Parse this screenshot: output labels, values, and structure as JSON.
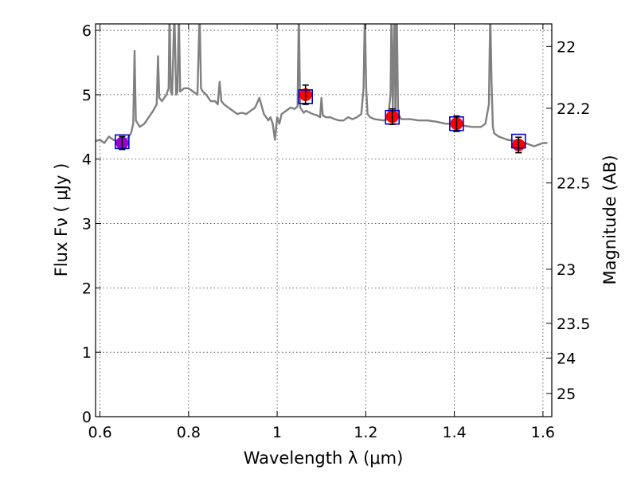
{
  "chart_data": {
    "type": "scatter",
    "xlabel": "Wavelength  λ (μm)",
    "ylabel": "Flux  Fν  ( μJy )",
    "ylabel_right": "Magnitude (AB)",
    "xlim": [
      0.59,
      1.62
    ],
    "ylim": [
      0,
      6.1
    ],
    "grid": true,
    "x_ticks": [
      0.6,
      0.8,
      1.0,
      1.2,
      1.4,
      1.6
    ],
    "x_tick_labels": [
      "0.6",
      "0.8",
      "1",
      "1.2",
      "1.4",
      "1.6"
    ],
    "y_ticks": [
      0,
      1,
      2,
      3,
      4,
      5,
      6
    ],
    "y_tick_labels": [
      "0",
      "1",
      "2",
      "3",
      "4",
      "5",
      "6"
    ],
    "right_ticks": [
      {
        "flux": 5.75,
        "label": "22"
      },
      {
        "flux": 4.79,
        "label": "22.2"
      },
      {
        "flux": 3.63,
        "label": "22.5"
      },
      {
        "flux": 2.29,
        "label": "23"
      },
      {
        "flux": 1.45,
        "label": "23.5"
      },
      {
        "flux": 0.91,
        "label": "24"
      },
      {
        "flux": 0.36,
        "label": "25"
      }
    ],
    "colors": {
      "model": "#808080",
      "observed": "#ff0000",
      "synthetic_box": "#0000cc",
      "errorbar": "#000000",
      "first_point": "#9900cc"
    },
    "model_spectrum": {
      "x": [
        0.59,
        0.6,
        0.61,
        0.62,
        0.63,
        0.64,
        0.65,
        0.66,
        0.67,
        0.675,
        0.678,
        0.681,
        0.69,
        0.7,
        0.71,
        0.72,
        0.728,
        0.731,
        0.734,
        0.74,
        0.75,
        0.755,
        0.757,
        0.76,
        0.763,
        0.768,
        0.772,
        0.775,
        0.778,
        0.781,
        0.79,
        0.8,
        0.81,
        0.82,
        0.825,
        0.828,
        0.832,
        0.84,
        0.85,
        0.86,
        0.866,
        0.87,
        0.874,
        0.88,
        0.89,
        0.9,
        0.91,
        0.92,
        0.93,
        0.94,
        0.95,
        0.96,
        0.97,
        0.98,
        0.985,
        0.99,
        0.995,
        1.0,
        1.005,
        1.01,
        1.02,
        1.03,
        1.04,
        1.046,
        1.049,
        1.052,
        1.06,
        1.065,
        1.08,
        1.09,
        1.097,
        1.1,
        1.103,
        1.11,
        1.12,
        1.13,
        1.14,
        1.15,
        1.16,
        1.17,
        1.18,
        1.19,
        1.195,
        1.198,
        1.201,
        1.204,
        1.21,
        1.22,
        1.24,
        1.25,
        1.256,
        1.258,
        1.261,
        1.265,
        1.267,
        1.27,
        1.273,
        1.28,
        1.3,
        1.32,
        1.34,
        1.36,
        1.38,
        1.4,
        1.42,
        1.44,
        1.46,
        1.47,
        1.478,
        1.481,
        1.484,
        1.487,
        1.49,
        1.5,
        1.52,
        1.54,
        1.56,
        1.58,
        1.6,
        1.61
      ],
      "y": [
        4.28,
        4.3,
        4.25,
        4.35,
        4.3,
        4.28,
        4.26,
        4.3,
        4.4,
        4.55,
        5.68,
        4.6,
        4.5,
        4.55,
        4.65,
        4.75,
        4.85,
        5.6,
        4.95,
        4.9,
        5.0,
        5.1,
        6.3,
        5.05,
        5.0,
        6.3,
        5.0,
        5.05,
        6.3,
        5.05,
        5.1,
        5.1,
        5.05,
        5.0,
        6.3,
        5.1,
        5.05,
        5.0,
        4.9,
        4.9,
        4.85,
        5.2,
        4.9,
        4.85,
        4.8,
        4.75,
        4.7,
        4.72,
        4.7,
        4.75,
        4.8,
        4.95,
        4.7,
        4.6,
        4.65,
        4.55,
        4.3,
        4.65,
        4.55,
        4.7,
        4.75,
        4.8,
        4.78,
        4.82,
        6.3,
        4.8,
        4.72,
        4.75,
        4.7,
        4.68,
        4.65,
        4.95,
        4.68,
        4.65,
        4.65,
        4.62,
        4.6,
        4.6,
        4.65,
        4.62,
        4.65,
        4.7,
        5.1,
        6.3,
        5.1,
        4.7,
        4.65,
        4.62,
        4.6,
        4.62,
        5.0,
        6.3,
        4.8,
        6.3,
        4.65,
        6.3,
        4.7,
        4.62,
        4.62,
        4.6,
        4.6,
        4.58,
        4.55,
        4.55,
        4.52,
        4.5,
        4.5,
        4.55,
        4.85,
        6.3,
        5.2,
        4.5,
        4.4,
        4.35,
        4.3,
        4.28,
        4.25,
        4.2,
        4.25,
        4.25
      ]
    },
    "observed": [
      {
        "x": 0.65,
        "y": 4.25,
        "yerr": 0.1
      },
      {
        "x": 1.064,
        "y": 5.0,
        "yerr": 0.15
      },
      {
        "x": 1.26,
        "y": 4.66,
        "yerr": 0.12
      },
      {
        "x": 1.405,
        "y": 4.55,
        "yerr": 0.12
      },
      {
        "x": 1.545,
        "y": 4.22,
        "yerr": 0.12
      }
    ],
    "synthetic": [
      {
        "x": 0.65,
        "y": 4.27
      },
      {
        "x": 1.064,
        "y": 4.97
      },
      {
        "x": 1.26,
        "y": 4.65
      },
      {
        "x": 1.405,
        "y": 4.55
      },
      {
        "x": 1.545,
        "y": 4.28
      }
    ]
  }
}
